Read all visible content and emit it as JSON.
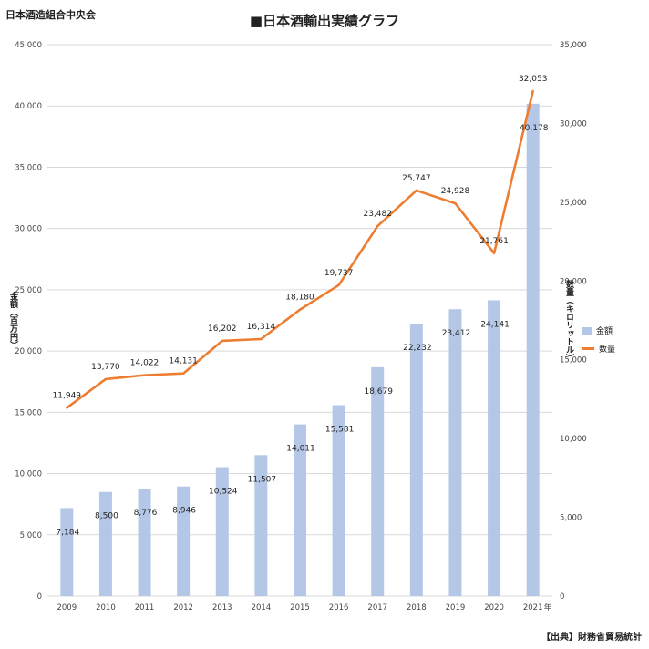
{
  "header": {
    "org": "日本酒造組合中央会",
    "title": "■日本酒輸出実績グラフ"
  },
  "footer": {
    "source": "【出典】財務省貿易統計"
  },
  "colors": {
    "bar": "#b4c7e7",
    "line": "#ed7d31",
    "grid": "#d9d9d9"
  },
  "chart_data": {
    "type": "bar",
    "title": "■日本酒輸出実績グラフ",
    "categories": [
      "2009",
      "2010",
      "2011",
      "2012",
      "2013",
      "2014",
      "2015",
      "2016",
      "2017",
      "2018",
      "2019",
      "2020",
      "2021"
    ],
    "x_unit": "年",
    "series": [
      {
        "name": "金額",
        "type": "bar",
        "axis": "left",
        "values": [
          7184,
          8500,
          8776,
          8946,
          10524,
          11507,
          14011,
          15581,
          18679,
          22232,
          23412,
          24141,
          40178
        ]
      },
      {
        "name": "数量",
        "type": "line",
        "axis": "right",
        "values": [
          11949,
          13770,
          14022,
          14131,
          16202,
          16314,
          18180,
          19737,
          23482,
          25747,
          24928,
          21761,
          32053
        ]
      }
    ],
    "y_left": {
      "label": "金額（百万円）",
      "ylim": [
        0,
        45000
      ],
      "ticks": [
        "0",
        "5,000",
        "10,000",
        "15,000",
        "20,000",
        "25,000",
        "30,000",
        "35,000",
        "40,000",
        "45,000"
      ]
    },
    "y_right": {
      "label": "数量（キロリットル）",
      "ylim": [
        0,
        35000
      ],
      "ticks": [
        "0",
        "5,000",
        "10,000",
        "15,000",
        "20,000",
        "25,000",
        "30,000",
        "35,000"
      ]
    },
    "bar_labels": [
      "7,184",
      "8,500",
      "8,776",
      "8,946",
      "10,524",
      "11,507",
      "14,011",
      "15,581",
      "18,679",
      "22,232",
      "23,412",
      "24,141",
      "40,178"
    ],
    "line_labels": [
      "11,949",
      "13,770",
      "14,022",
      "14,131",
      "16,202",
      "16,314",
      "18,180",
      "19,737",
      "23,482",
      "25,747",
      "24,928",
      "21,761",
      "32,053"
    ],
    "grid": true,
    "legend": "right"
  }
}
